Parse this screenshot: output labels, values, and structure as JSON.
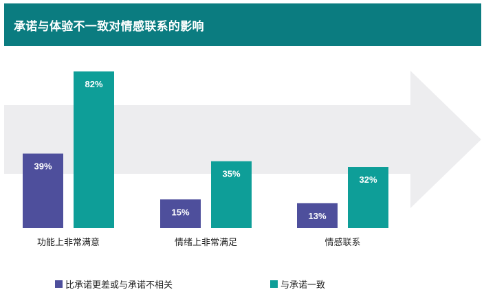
{
  "title": "承诺与体验不一致对情感联系的影响",
  "colors": {
    "header_bg": "#0b7c80",
    "arrow": "#ededef",
    "series_1": "#4e4f9c",
    "series_2": "#0e9e98"
  },
  "chart_data": {
    "type": "bar",
    "categories": [
      "功能上非常满意",
      "情绪上非常满足",
      "情感联系"
    ],
    "series": [
      {
        "name": "比承诺更差或与承诺不相关",
        "values": [
          39,
          15,
          13
        ],
        "labels": [
          "39%",
          "15%",
          "13%"
        ]
      },
      {
        "name": "与承诺一致",
        "values": [
          82,
          35,
          32
        ],
        "labels": [
          "82%",
          "35%",
          "32%"
        ]
      }
    ],
    "legend_position": "bottom",
    "grid": false,
    "ylim": [
      0,
      82
    ]
  }
}
